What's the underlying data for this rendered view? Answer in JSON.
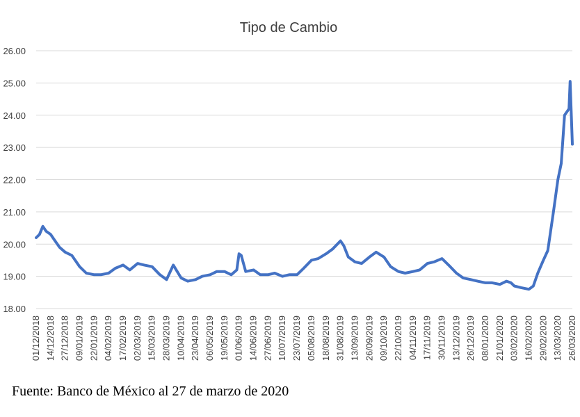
{
  "chart_data": {
    "type": "line",
    "title": "Tipo de Cambio",
    "xlabel": "",
    "ylabel": "",
    "ylim": [
      18.0,
      26.0
    ],
    "yticks": [
      "18.00",
      "19.00",
      "20.00",
      "21.00",
      "22.00",
      "23.00",
      "24.00",
      "25.00",
      "26.00"
    ],
    "xticks": [
      "01/12/2018",
      "14/12/2018",
      "27/12/2018",
      "09/01/2019",
      "22/01/2019",
      "04/02/2019",
      "17/02/2019",
      "02/03/2019",
      "15/03/2019",
      "28/03/2019",
      "10/04/2019",
      "23/04/2019",
      "06/05/2019",
      "19/05/2019",
      "01/06/2019",
      "14/06/2019",
      "27/06/2019",
      "10/07/2019",
      "23/07/2019",
      "05/08/2019",
      "18/08/2019",
      "31/08/2019",
      "13/09/2019",
      "26/09/2019",
      "09/10/2019",
      "22/10/2019",
      "04/11/2019",
      "17/11/2019",
      "30/11/2019",
      "13/12/2019",
      "26/12/2019",
      "08/01/2020",
      "21/01/2020",
      "03/02/2020",
      "16/02/2020",
      "29/02/2020",
      "13/03/2020",
      "26/03/2020"
    ],
    "grid": true,
    "legend": "none",
    "color": "#4472c4",
    "series": [
      {
        "x": [
          "01/12/2018",
          "04/12/2018",
          "07/12/2018",
          "10/12/2018",
          "14/12/2018",
          "18/12/2018",
          "22/12/2018",
          "27/12/2018",
          "02/01/2019",
          "09/01/2019",
          "15/01/2019",
          "22/01/2019",
          "28/01/2019",
          "04/02/2019",
          "10/02/2019",
          "17/02/2019",
          "23/02/2019",
          "02/03/2019",
          "08/03/2019",
          "15/03/2019",
          "22/03/2019",
          "28/03/2019",
          "03/04/2019",
          "10/04/2019",
          "16/04/2019",
          "23/04/2019",
          "29/04/2019",
          "06/05/2019",
          "12/05/2019",
          "19/05/2019",
          "25/05/2019",
          "30/05/2019",
          "01/06/2019",
          "03/06/2019",
          "07/06/2019",
          "14/06/2019",
          "20/06/2019",
          "27/06/2019",
          "03/07/2019",
          "10/07/2019",
          "16/07/2019",
          "23/07/2019",
          "29/07/2019",
          "05/08/2019",
          "11/08/2019",
          "18/08/2019",
          "24/08/2019",
          "31/08/2019",
          "03/09/2019",
          "07/09/2019",
          "13/09/2019",
          "19/09/2019",
          "26/09/2019",
          "02/10/2019",
          "09/10/2019",
          "15/10/2019",
          "22/10/2019",
          "28/10/2019",
          "04/11/2019",
          "10/11/2019",
          "17/11/2019",
          "23/11/2019",
          "30/11/2019",
          "06/12/2019",
          "13/12/2019",
          "19/12/2019",
          "26/12/2019",
          "01/01/2020",
          "08/01/2020",
          "14/01/2020",
          "21/01/2020",
          "27/01/2020",
          "31/01/2020",
          "03/02/2020",
          "09/02/2020",
          "16/02/2020",
          "20/02/2020",
          "24/02/2020",
          "29/02/2020",
          "04/03/2020",
          "09/03/2020",
          "13/03/2020",
          "16/03/2020",
          "19/03/2020",
          "23/03/2020",
          "24/03/2020",
          "26/03/2020"
        ],
        "values": [
          20.2,
          20.3,
          20.55,
          20.4,
          20.3,
          20.1,
          19.9,
          19.75,
          19.65,
          19.3,
          19.1,
          19.05,
          19.05,
          19.1,
          19.25,
          19.35,
          19.2,
          19.4,
          19.35,
          19.3,
          19.05,
          18.9,
          19.35,
          18.95,
          18.85,
          18.9,
          19.0,
          19.05,
          19.15,
          19.15,
          19.05,
          19.2,
          19.7,
          19.65,
          19.15,
          19.2,
          19.05,
          19.05,
          19.1,
          19.0,
          19.05,
          19.05,
          19.25,
          19.5,
          19.55,
          19.7,
          19.85,
          20.1,
          19.95,
          19.6,
          19.45,
          19.4,
          19.6,
          19.75,
          19.6,
          19.3,
          19.15,
          19.1,
          19.15,
          19.2,
          19.4,
          19.45,
          19.55,
          19.35,
          19.1,
          18.95,
          18.9,
          18.85,
          18.8,
          18.8,
          18.75,
          18.85,
          18.8,
          18.7,
          18.65,
          18.6,
          18.7,
          19.1,
          19.5,
          19.8,
          21.0,
          22.0,
          22.5,
          24.0,
          24.2,
          25.05,
          23.1
        ]
      }
    ]
  },
  "source_note": "Fuente: Banco de México al 27 de marzo de 2020"
}
